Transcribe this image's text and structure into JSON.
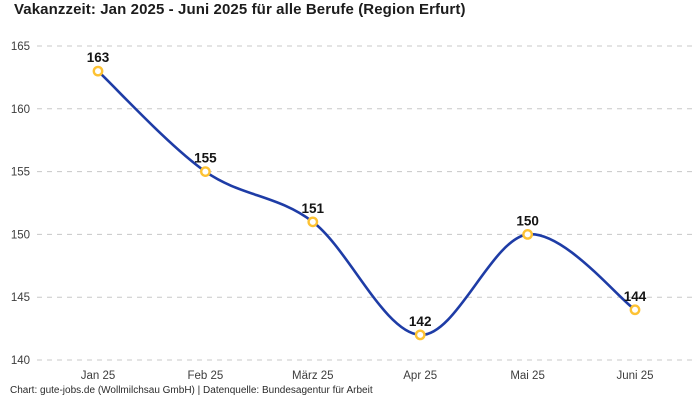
{
  "title": "Vakanzzeit: Jan 2025 - Juni 2025 für alle Berufe (Region Erfurt)",
  "footer": "Chart: gute-jobs.de (Wollmilchsau GmbH) | Datenquelle: Bundesagentur für Arbeit",
  "chart_data": {
    "type": "line",
    "title": "Vakanzzeit: Jan 2025 - Juni 2025 für alle Berufe (Region Erfurt)",
    "categories": [
      "Jan 25",
      "Feb 25",
      "März 25",
      "Apr 25",
      "Mai 25",
      "Juni 25"
    ],
    "series": [
      {
        "name": "Vakanzzeit",
        "values": [
          163,
          155,
          151,
          142,
          150,
          144
        ]
      }
    ],
    "data_labels": [
      163,
      155,
      151,
      142,
      150,
      144
    ],
    "xlabel": "",
    "ylabel": "",
    "ylim": [
      140,
      165
    ],
    "yticks": [
      165,
      160,
      155,
      150,
      145,
      140
    ],
    "grid": "horizontal-dashed",
    "legend": "none",
    "line_style": "smooth-spline",
    "marker_style": "open-circle",
    "colors": {
      "line": "#1e3ca6",
      "marker_ring": "#fdc233",
      "marker_fill": "#ffffff",
      "gridline": "#c8c8c8",
      "tick_label": "#3d3d3d",
      "data_label": "#141414",
      "title": "#1c1c1c",
      "footer": "#2b2b2b",
      "background": "#ffffff"
    }
  }
}
